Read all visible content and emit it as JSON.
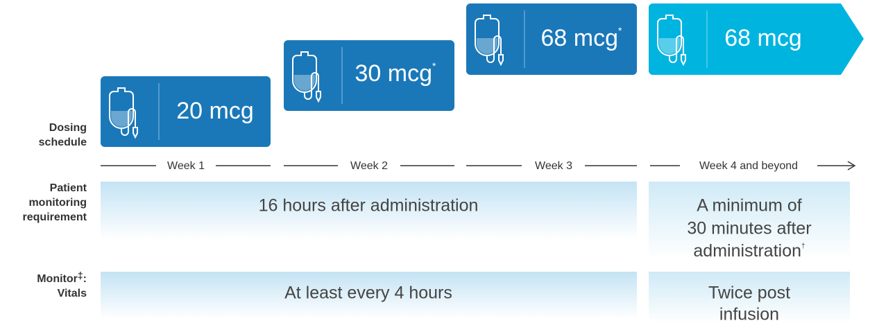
{
  "rows": [
    {
      "lines": [
        "Dosing",
        "schedule"
      ]
    },
    {
      "lines": [
        "Patient",
        "monitoring",
        "requirement"
      ]
    },
    {
      "first_line": "Monitor",
      "footnote": "‡",
      "first_line_end": ":",
      "second_line": "Vitals"
    }
  ],
  "doses": [
    {
      "amount": "20 mcg"
    },
    {
      "amount": "30 mcg",
      "footnote": "*"
    },
    {
      "amount": "68 mcg",
      "footnote": "*"
    },
    {
      "amount": "68 mcg"
    }
  ],
  "weeks": [
    "Week 1",
    "Week 2",
    "Week 3",
    "Week 4 and beyond"
  ],
  "monitoring": {
    "phase1": "16 hours after administration",
    "phase2": [
      "A minimum of",
      "30 minutes after",
      "administration"
    ],
    "phase2_footnote": "†"
  },
  "vitals": {
    "phase1": "At least every 4 hours",
    "phase2": [
      "Twice post",
      "infusion"
    ]
  }
}
